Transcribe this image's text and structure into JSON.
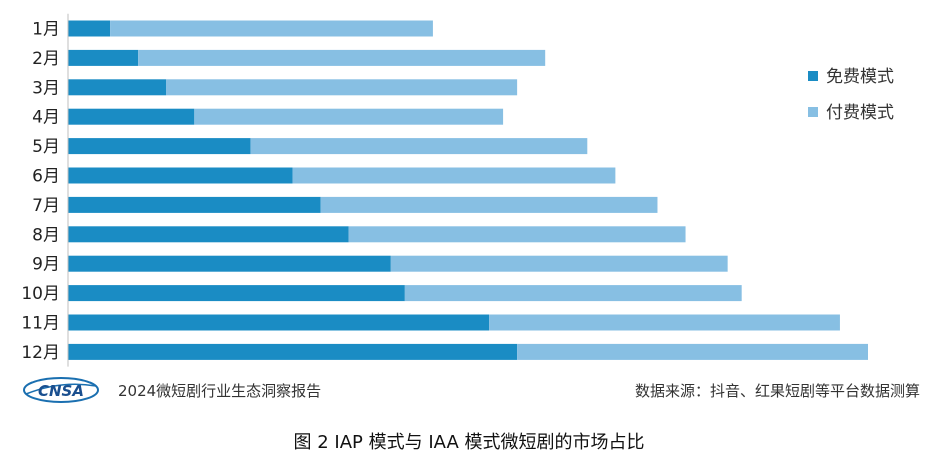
{
  "chart_data": {
    "type": "bar",
    "orientation": "horizontal",
    "stacked": true,
    "categories": [
      "1月",
      "2月",
      "3月",
      "4月",
      "5月",
      "6月",
      "7月",
      "8月",
      "9月",
      "10月",
      "11月",
      "12月"
    ],
    "series": [
      {
        "name": "免费模式",
        "color": "#1a8cc4",
        "values": [
          3,
          5,
          7,
          9,
          13,
          16,
          18,
          20,
          23,
          24,
          30,
          32
        ]
      },
      {
        "name": "付费模式",
        "color": "#87bfe3",
        "values": [
          23,
          29,
          25,
          22,
          24,
          23,
          24,
          24,
          24,
          24,
          25,
          25
        ]
      }
    ],
    "xlim": [
      0,
      57
    ],
    "grid": false,
    "legend_position": "right"
  },
  "footer": {
    "logo_text": "CNSA",
    "report_name": "2024微短剧行业生态洞察报告",
    "source": "数据来源：抖音、红果短剧等平台数据测算"
  },
  "caption": "图 2 IAP 模式与 IAA 模式微短剧的市场占比"
}
